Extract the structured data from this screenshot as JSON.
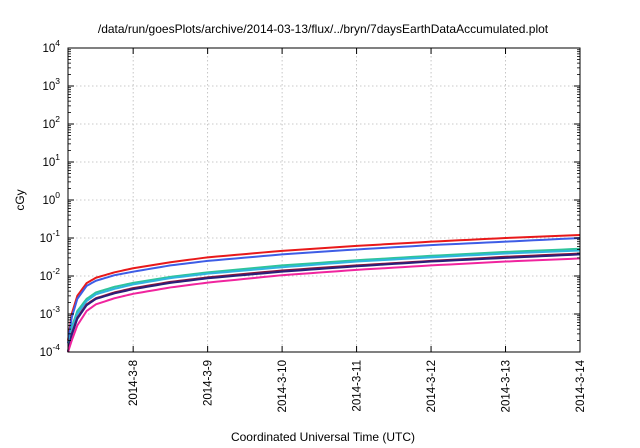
{
  "chart_data": {
    "type": "line",
    "title": "/data/run/goesPlots/archive/2014-03-13/flux/../bryn/7daysEarthDataAccumulated.plot",
    "xlabel": "Coordinated Universal Time (UTC)",
    "ylabel": "cGy",
    "yscale": "log",
    "ylim": [
      0.0001,
      10000
    ],
    "y_ticks": [
      {
        "base": "10",
        "exp": "-4",
        "value": 0.0001
      },
      {
        "base": "10",
        "exp": "-3",
        "value": 0.001
      },
      {
        "base": "10",
        "exp": "-2",
        "value": 0.01
      },
      {
        "base": "10",
        "exp": "-1",
        "value": 0.1
      },
      {
        "base": "10",
        "exp": "0",
        "value": 1
      },
      {
        "base": "10",
        "exp": "1",
        "value": 10
      },
      {
        "base": "10",
        "exp": "2",
        "value": 100
      },
      {
        "base": "10",
        "exp": "3",
        "value": 1000
      },
      {
        "base": "10",
        "exp": "4",
        "value": 10000
      }
    ],
    "x_ticks": [
      "2014-3-8",
      "2014-3-9",
      "2014-3-10",
      "2014-3-11",
      "2014-3-12",
      "2014-3-13",
      "2014-3-14"
    ],
    "xlim_days": [
      "2014-3-7 03:00",
      "2014-3-14 00:00"
    ],
    "grid": true,
    "x": [
      "2014-3-7 03:00",
      "2014-3-7 04:12",
      "2014-3-7 06:00",
      "2014-3-7 09:00",
      "2014-3-7 12:00",
      "2014-3-7 18:00",
      "2014-3-8 00:00",
      "2014-3-8 12:00",
      "2014-3-9 00:00",
      "2014-3-10 00:00",
      "2014-3-11 00:00",
      "2014-3-12 00:00",
      "2014-3-13 00:00",
      "2014-3-14 00:00"
    ],
    "series": [
      {
        "color": "#e8191a",
        "values": [
          0.0002,
          0.001,
          0.003,
          0.0065,
          0.009,
          0.0125,
          0.016,
          0.023,
          0.031,
          0.046,
          0.062,
          0.08,
          0.1,
          0.12
        ]
      },
      {
        "color": "#3e5de6",
        "values": [
          0.00017,
          0.0008,
          0.0025,
          0.0055,
          0.0075,
          0.0105,
          0.013,
          0.019,
          0.025,
          0.037,
          0.05,
          0.065,
          0.08,
          0.1
        ]
      },
      {
        "color": "#2fc49a",
        "values": [
          0.0001,
          0.00045,
          0.0012,
          0.0025,
          0.0037,
          0.0052,
          0.0066,
          0.0095,
          0.0125,
          0.019,
          0.026,
          0.034,
          0.043,
          0.052
        ]
      },
      {
        "color": "#30b4e0",
        "values": [
          0.0001,
          0.0004,
          0.001,
          0.0022,
          0.0033,
          0.0046,
          0.006,
          0.0088,
          0.0115,
          0.017,
          0.024,
          0.031,
          0.039,
          0.047
        ]
      },
      {
        "color": "#8a1538",
        "values": [
          0.0001,
          0.0003,
          0.0008,
          0.0018,
          0.0026,
          0.0037,
          0.0048,
          0.007,
          0.0092,
          0.014,
          0.019,
          0.025,
          0.032,
          0.039
        ]
      },
      {
        "color": "#2a1f7a",
        "values": [
          0.0001,
          0.00028,
          0.00075,
          0.0017,
          0.0025,
          0.0035,
          0.0045,
          0.0066,
          0.0087,
          0.013,
          0.018,
          0.024,
          0.03,
          0.037
        ]
      },
      {
        "color": "#f0249e",
        "values": [
          0.0001,
          0.0002,
          0.0005,
          0.0012,
          0.0018,
          0.0026,
          0.0034,
          0.005,
          0.0067,
          0.0105,
          0.0145,
          0.019,
          0.024,
          0.029
        ]
      }
    ]
  }
}
